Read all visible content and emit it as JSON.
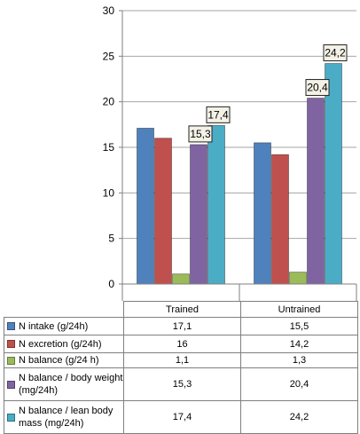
{
  "chart_data": {
    "type": "bar",
    "categories": [
      "Trained",
      "Untrained"
    ],
    "ylim": [
      0,
      30
    ],
    "yticks": [
      0,
      5,
      10,
      15,
      20,
      25,
      30
    ],
    "grid": true,
    "series": [
      {
        "name": "N intake (g/24h)",
        "color": "#4f81bd",
        "values": [
          17.1,
          15.5
        ],
        "table_values": [
          "17,1",
          "15,5"
        ]
      },
      {
        "name": "N excretion (g/24h)",
        "color": "#c0504d",
        "values": [
          16,
          14.2
        ],
        "table_values": [
          "16",
          "14,2"
        ]
      },
      {
        "name": "N balance (g/24 h)",
        "color": "#9bbb59",
        "values": [
          1.1,
          1.3
        ],
        "table_values": [
          "1,1",
          "1,3"
        ]
      },
      {
        "name": "N balance / body weight (mg/24h)",
        "color": "#8064a2",
        "values": [
          15.3,
          20.4
        ],
        "table_values": [
          "15,3",
          "20,4"
        ]
      },
      {
        "name": "N balance / lean body mass (mg/24h)",
        "color": "#4bacc6",
        "values": [
          17.4,
          24.2
        ],
        "table_values": [
          "17,4",
          "24,2"
        ]
      }
    ],
    "annotations": [
      {
        "series": 3,
        "category": 0,
        "text": "15,3"
      },
      {
        "series": 4,
        "category": 0,
        "text": "17,4"
      },
      {
        "series": 3,
        "category": 1,
        "text": "20,4"
      },
      {
        "series": 4,
        "category": 1,
        "text": "24,2"
      }
    ]
  }
}
